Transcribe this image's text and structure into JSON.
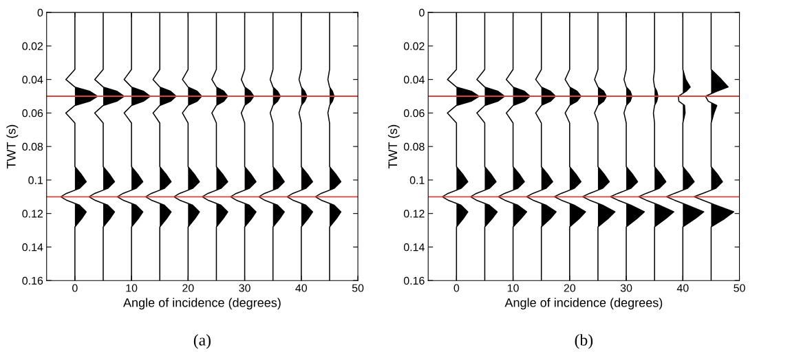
{
  "chart_data": [
    {
      "type": "line",
      "title": "(a)",
      "xlabel": "Angle of incidence (degrees)",
      "ylabel": "TWT (s)",
      "xlim": [
        -5,
        50
      ],
      "xticks": [
        0,
        10,
        20,
        30,
        40,
        50
      ],
      "ylim": [
        0.16,
        0
      ],
      "yticks": [
        0,
        0.02,
        0.04,
        0.06,
        0.08,
        0.1,
        0.12,
        0.14,
        0.16
      ],
      "grid": false,
      "ref_lines": [
        {
          "axis": "y",
          "value": 0.05,
          "color": "#e0403a"
        },
        {
          "axis": "y",
          "value": 0.11,
          "color": "#e0403a"
        }
      ],
      "series": [
        {
          "color": "#000000",
          "x": [
            0,
            0,
            -1.6,
            0,
            2.6,
            4,
            2.6,
            0,
            -1.6,
            0,
            0,
            1.2,
            2,
            0.8,
            -1.5,
            -2.5,
            -1.5,
            0.8,
            2,
            1.2,
            0,
            0
          ],
          "values": [
            0,
            0.034,
            0.04,
            0.0445,
            0.047,
            0.05,
            0.053,
            0.0555,
            0.06,
            0.066,
            0.092,
            0.097,
            0.101,
            0.105,
            0.108,
            0.11,
            0.112,
            0.115,
            0.119,
            0.123,
            0.128,
            0.16
          ]
        },
        {
          "color": "#000000",
          "x": [
            5,
            5,
            3.5,
            5,
            7.4,
            8.7,
            7.4,
            5,
            3.5,
            5,
            5,
            6.2,
            7,
            5.8,
            3.5,
            2.5,
            3.5,
            5.8,
            7,
            6.2,
            5,
            5
          ],
          "values": [
            0,
            0.034,
            0.04,
            0.0445,
            0.047,
            0.05,
            0.053,
            0.0555,
            0.06,
            0.066,
            0.092,
            0.097,
            0.101,
            0.105,
            0.108,
            0.11,
            0.112,
            0.115,
            0.119,
            0.123,
            0.128,
            0.16
          ]
        },
        {
          "color": "#000000",
          "x": [
            10,
            10,
            8.7,
            10,
            12.1,
            13.3,
            12.1,
            10,
            8.7,
            10,
            10,
            11.2,
            12,
            10.8,
            8.5,
            7.5,
            8.5,
            10.8,
            12,
            11.2,
            10,
            10
          ],
          "values": [
            0,
            0.034,
            0.04,
            0.0445,
            0.047,
            0.05,
            0.053,
            0.0555,
            0.06,
            0.066,
            0.092,
            0.097,
            0.101,
            0.105,
            0.108,
            0.11,
            0.112,
            0.115,
            0.119,
            0.123,
            0.128,
            0.16
          ]
        },
        {
          "color": "#000000",
          "x": [
            15,
            15,
            13.8,
            15,
            16.9,
            17.9,
            16.9,
            15,
            13.8,
            15,
            15,
            16.2,
            17,
            15.8,
            13.5,
            12.5,
            13.5,
            15.8,
            17,
            16.2,
            15,
            15
          ],
          "values": [
            0,
            0.034,
            0.04,
            0.0445,
            0.047,
            0.05,
            0.053,
            0.0555,
            0.06,
            0.066,
            0.092,
            0.097,
            0.101,
            0.105,
            0.108,
            0.11,
            0.112,
            0.115,
            0.119,
            0.123,
            0.128,
            0.16
          ]
        },
        {
          "color": "#000000",
          "x": [
            20,
            20,
            19,
            20,
            21.6,
            22.4,
            21.6,
            20,
            19,
            20,
            20,
            21.2,
            22,
            20.8,
            18.5,
            17.5,
            18.5,
            20.8,
            22,
            21.2,
            20,
            20
          ],
          "values": [
            0,
            0.034,
            0.04,
            0.0445,
            0.047,
            0.05,
            0.053,
            0.0555,
            0.06,
            0.066,
            0.092,
            0.097,
            0.101,
            0.105,
            0.108,
            0.11,
            0.112,
            0.115,
            0.119,
            0.123,
            0.128,
            0.16
          ]
        },
        {
          "color": "#000000",
          "x": [
            25,
            25,
            24.2,
            25,
            26.3,
            27,
            26.3,
            25,
            24.2,
            25,
            25,
            26.2,
            27,
            25.8,
            23.5,
            22.5,
            23.5,
            25.8,
            27,
            26.2,
            25,
            25
          ],
          "values": [
            0,
            0.034,
            0.04,
            0.0445,
            0.047,
            0.05,
            0.053,
            0.0555,
            0.06,
            0.066,
            0.092,
            0.097,
            0.101,
            0.105,
            0.108,
            0.11,
            0.112,
            0.115,
            0.119,
            0.123,
            0.128,
            0.16
          ]
        },
        {
          "color": "#000000",
          "x": [
            30,
            30,
            29.4,
            30,
            31,
            31.6,
            31,
            30,
            29.4,
            30,
            30,
            31.2,
            32,
            30.8,
            28.5,
            27.5,
            28.5,
            30.8,
            32,
            31.2,
            30,
            30
          ],
          "values": [
            0,
            0.034,
            0.04,
            0.0445,
            0.047,
            0.05,
            0.053,
            0.0555,
            0.06,
            0.066,
            0.092,
            0.097,
            0.101,
            0.105,
            0.108,
            0.11,
            0.112,
            0.115,
            0.119,
            0.123,
            0.128,
            0.16
          ]
        },
        {
          "color": "#000000",
          "x": [
            35,
            35,
            34.5,
            35,
            35.8,
            36.3,
            35.8,
            35,
            34.5,
            35,
            35,
            36.2,
            37,
            35.8,
            33.5,
            32.5,
            33.5,
            35.8,
            37,
            36.2,
            35,
            35
          ],
          "values": [
            0,
            0.034,
            0.04,
            0.0445,
            0.047,
            0.05,
            0.053,
            0.0555,
            0.06,
            0.066,
            0.092,
            0.097,
            0.101,
            0.105,
            0.108,
            0.11,
            0.112,
            0.115,
            0.119,
            0.123,
            0.128,
            0.16
          ]
        },
        {
          "color": "#000000",
          "x": [
            40,
            40,
            39.6,
            40,
            40.6,
            41,
            40.6,
            40,
            39.6,
            40,
            40,
            41.2,
            42,
            40.8,
            38.5,
            37.5,
            38.5,
            40.8,
            42,
            41.2,
            40,
            40
          ],
          "values": [
            0,
            0.034,
            0.04,
            0.0445,
            0.047,
            0.05,
            0.053,
            0.0555,
            0.06,
            0.066,
            0.092,
            0.097,
            0.101,
            0.105,
            0.108,
            0.11,
            0.112,
            0.115,
            0.119,
            0.123,
            0.128,
            0.16
          ]
        },
        {
          "color": "#000000",
          "x": [
            45,
            45,
            44.7,
            45,
            45.5,
            45.8,
            45.5,
            45,
            44.7,
            45,
            45,
            46.2,
            47,
            45.8,
            43.5,
            42.5,
            43.5,
            45.8,
            47,
            46.2,
            45,
            45
          ],
          "values": [
            0,
            0.034,
            0.04,
            0.0445,
            0.047,
            0.05,
            0.053,
            0.0555,
            0.06,
            0.066,
            0.092,
            0.097,
            0.101,
            0.105,
            0.108,
            0.11,
            0.112,
            0.115,
            0.119,
            0.123,
            0.128,
            0.16
          ]
        }
      ]
    },
    {
      "type": "line",
      "title": "(b)",
      "xlabel": "Angle of incidence (degrees)",
      "ylabel": "TWT (s)",
      "xlim": [
        -5,
        50
      ],
      "xticks": [
        0,
        10,
        20,
        30,
        40,
        50
      ],
      "ylim": [
        0.16,
        0
      ],
      "yticks": [
        0,
        0.02,
        0.04,
        0.06,
        0.08,
        0.1,
        0.12,
        0.14,
        0.16
      ],
      "grid": false,
      "ref_lines": [
        {
          "axis": "y",
          "value": 0.05,
          "color": "#e0403a"
        },
        {
          "axis": "y",
          "value": 0.11,
          "color": "#e0403a"
        }
      ],
      "series": [
        {
          "color": "#000000",
          "x": [
            0,
            0,
            -1.6,
            0,
            2.6,
            4,
            2.6,
            0,
            -1.6,
            0,
            0,
            1.2,
            2,
            0.8,
            -1.5,
            -2.5,
            -1.5,
            0.8,
            2,
            1.2,
            0,
            0
          ],
          "values": [
            0,
            0.034,
            0.04,
            0.0445,
            0.047,
            0.05,
            0.053,
            0.0555,
            0.06,
            0.066,
            0.092,
            0.097,
            0.101,
            0.105,
            0.108,
            0.11,
            0.112,
            0.115,
            0.119,
            0.123,
            0.128,
            0.16
          ]
        },
        {
          "color": "#000000",
          "x": [
            5,
            5,
            3.6,
            5,
            7.3,
            8.5,
            7.3,
            5,
            3.6,
            5,
            5,
            6.2,
            7,
            5.8,
            3.5,
            2.5,
            3.5,
            5.8,
            7.2,
            6.3,
            5,
            5
          ],
          "values": [
            0,
            0.034,
            0.04,
            0.0445,
            0.047,
            0.05,
            0.053,
            0.0555,
            0.06,
            0.066,
            0.092,
            0.097,
            0.101,
            0.105,
            0.108,
            0.11,
            0.112,
            0.115,
            0.119,
            0.123,
            0.128,
            0.16
          ]
        },
        {
          "color": "#000000",
          "x": [
            10,
            10,
            8.8,
            10,
            12,
            13,
            12,
            10,
            8.8,
            10,
            10,
            11.2,
            12,
            10.8,
            8.5,
            7.4,
            8.5,
            10.8,
            12.4,
            11.4,
            10,
            10
          ],
          "values": [
            0,
            0.034,
            0.04,
            0.0445,
            0.047,
            0.05,
            0.053,
            0.0555,
            0.06,
            0.066,
            0.092,
            0.097,
            0.101,
            0.105,
            0.108,
            0.11,
            0.112,
            0.115,
            0.119,
            0.123,
            0.128,
            0.16
          ]
        },
        {
          "color": "#000000",
          "x": [
            15,
            15,
            14,
            15,
            16.6,
            17.5,
            16.6,
            15,
            14,
            15,
            15,
            16.2,
            17,
            15.8,
            13.5,
            12.4,
            13.5,
            15.8,
            17.6,
            16.6,
            15,
            15
          ],
          "values": [
            0,
            0.034,
            0.04,
            0.0445,
            0.047,
            0.05,
            0.053,
            0.0555,
            0.06,
            0.066,
            0.092,
            0.097,
            0.101,
            0.105,
            0.108,
            0.11,
            0.112,
            0.115,
            0.119,
            0.123,
            0.128,
            0.16
          ]
        },
        {
          "color": "#000000",
          "x": [
            20,
            20,
            19.2,
            20,
            21.3,
            22,
            21.3,
            20,
            19.2,
            20,
            20,
            21.2,
            22,
            20.8,
            18.5,
            17.3,
            18.5,
            20.8,
            22.8,
            21.7,
            20,
            20
          ],
          "values": [
            0,
            0.034,
            0.04,
            0.0445,
            0.047,
            0.05,
            0.053,
            0.0555,
            0.06,
            0.066,
            0.092,
            0.097,
            0.101,
            0.105,
            0.108,
            0.11,
            0.112,
            0.115,
            0.119,
            0.123,
            0.128,
            0.16
          ]
        },
        {
          "color": "#000000",
          "x": [
            25,
            25,
            24.4,
            25,
            26,
            26.5,
            26,
            25,
            24.4,
            25,
            25,
            26.2,
            27,
            25.8,
            23.5,
            22.3,
            23.5,
            25.8,
            28,
            26.8,
            25,
            25
          ],
          "values": [
            0,
            0.034,
            0.04,
            0.0445,
            0.047,
            0.05,
            0.053,
            0.0555,
            0.06,
            0.066,
            0.092,
            0.097,
            0.101,
            0.105,
            0.108,
            0.11,
            0.112,
            0.115,
            0.119,
            0.123,
            0.128,
            0.16
          ]
        },
        {
          "color": "#000000",
          "x": [
            30,
            30,
            29.6,
            30,
            30.7,
            31,
            30.7,
            30,
            29.6,
            30,
            30,
            31.2,
            32,
            30.8,
            28.5,
            27.2,
            28.5,
            30.8,
            33.2,
            31.9,
            30,
            30
          ],
          "values": [
            0,
            0.034,
            0.04,
            0.0445,
            0.047,
            0.05,
            0.053,
            0.0555,
            0.06,
            0.066,
            0.092,
            0.097,
            0.101,
            0.105,
            0.108,
            0.11,
            0.112,
            0.115,
            0.119,
            0.123,
            0.128,
            0.16
          ]
        },
        {
          "color": "#000000",
          "x": [
            35,
            35,
            34.8,
            35,
            35.4,
            35.6,
            35.4,
            35,
            34.8,
            35,
            35,
            36.2,
            37,
            35.8,
            33.5,
            32.2,
            33.5,
            35.8,
            38.4,
            37,
            35,
            35
          ],
          "values": [
            0,
            0.034,
            0.04,
            0.0445,
            0.047,
            0.05,
            0.053,
            0.0555,
            0.06,
            0.066,
            0.092,
            0.097,
            0.101,
            0.105,
            0.108,
            0.11,
            0.112,
            0.115,
            0.119,
            0.123,
            0.128,
            0.16
          ]
        },
        {
          "color": "#000000",
          "x": [
            40,
            40,
            40.5,
            41.3,
            40.6,
            39.2,
            39.3,
            40.3,
            40.4,
            40,
            40,
            41.2,
            42,
            40.8,
            38.5,
            37.1,
            38.5,
            40.8,
            43.7,
            42.2,
            40,
            40
          ],
          "values": [
            0,
            0.034,
            0.04,
            0.0445,
            0.047,
            0.05,
            0.053,
            0.0555,
            0.06,
            0.066,
            0.092,
            0.097,
            0.101,
            0.105,
            0.108,
            0.11,
            0.112,
            0.115,
            0.119,
            0.123,
            0.128,
            0.16
          ]
        },
        {
          "color": "#000000",
          "x": [
            45,
            45,
            46.8,
            48,
            46,
            44,
            44.5,
            46,
            45.5,
            45,
            45,
            46.2,
            47,
            45.8,
            43.5,
            42,
            43.5,
            45.8,
            49,
            47.4,
            45,
            45
          ],
          "values": [
            0,
            0.034,
            0.04,
            0.0445,
            0.047,
            0.05,
            0.053,
            0.0555,
            0.06,
            0.066,
            0.092,
            0.097,
            0.101,
            0.105,
            0.108,
            0.11,
            0.112,
            0.115,
            0.119,
            0.123,
            0.128,
            0.16
          ]
        }
      ]
    }
  ]
}
